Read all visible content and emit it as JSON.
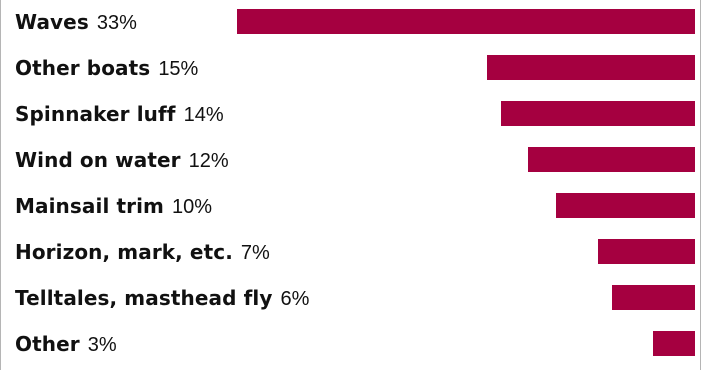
{
  "colors": {
    "bar": "#a50040",
    "text": "#111111",
    "frame": "#b5b5b5"
  },
  "chart_data": {
    "type": "bar",
    "orientation": "horizontal",
    "title": "",
    "xlabel": "",
    "ylabel": "",
    "xlim": [
      0,
      33
    ],
    "grid": false,
    "categories": [
      "Waves",
      "Other boats",
      "Spinnaker luff",
      "Wind on water",
      "Mainsail trim",
      "Horizon, mark, etc.",
      "Telltales, masthead fly",
      "Other"
    ],
    "values": [
      33,
      15,
      14,
      12,
      10,
      7,
      6,
      3
    ],
    "value_labels": [
      "33%",
      "15%",
      "14%",
      "12%",
      "10%",
      "7%",
      "6%",
      "3%"
    ]
  }
}
